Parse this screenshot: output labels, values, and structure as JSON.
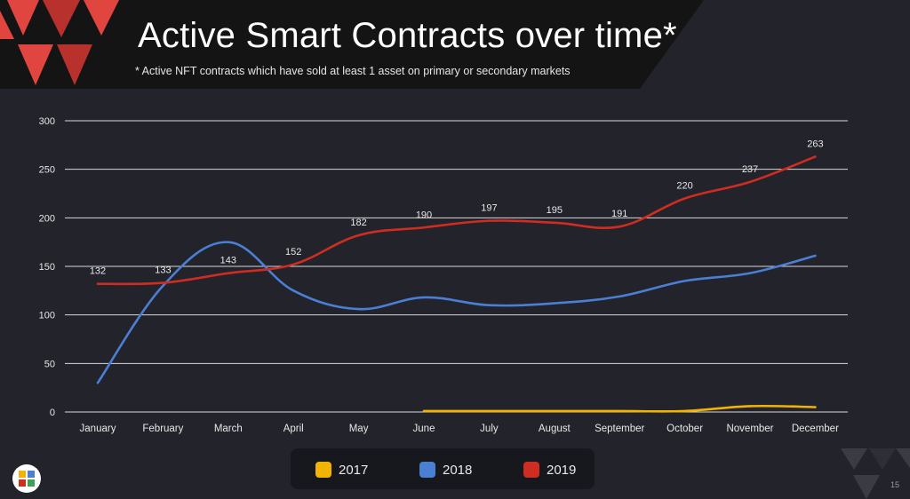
{
  "slide": {
    "title": "Active Smart Contracts over time*",
    "subtitle": "* Active NFT contracts which have sold at least 1 asset on primary or secondary markets",
    "page_number": "15"
  },
  "colors": {
    "background": "#22232b",
    "banner": "#151414",
    "accent_red": "#e0463f",
    "accent_red_dark": "#b8312c",
    "series_2017": "#f2b400",
    "series_2018": "#4a7fd4",
    "series_2019": "#cf2c22",
    "grid": "#d9d9d9",
    "text": "#e8e8e8"
  },
  "chart_data": {
    "type": "line",
    "categories": [
      "January",
      "February",
      "March",
      "April",
      "May",
      "June",
      "July",
      "August",
      "September",
      "October",
      "November",
      "December"
    ],
    "ylim": [
      0,
      300
    ],
    "yticks": [
      0,
      50,
      100,
      150,
      200,
      250,
      300
    ],
    "grid": true,
    "legend_position": "bottom",
    "series": [
      {
        "name": "2017",
        "color": "#f2b400",
        "values": [
          null,
          null,
          null,
          null,
          null,
          1,
          1,
          1,
          1,
          1,
          6,
          5
        ]
      },
      {
        "name": "2018",
        "color": "#4a7fd4",
        "values": [
          30,
          130,
          175,
          125,
          106,
          118,
          110,
          112,
          119,
          135,
          143,
          161
        ]
      },
      {
        "name": "2019",
        "color": "#cf2c22",
        "values": [
          132,
          133,
          143,
          152,
          182,
          190,
          197,
          195,
          191,
          220,
          237,
          263
        ],
        "show_labels": true
      }
    ]
  }
}
